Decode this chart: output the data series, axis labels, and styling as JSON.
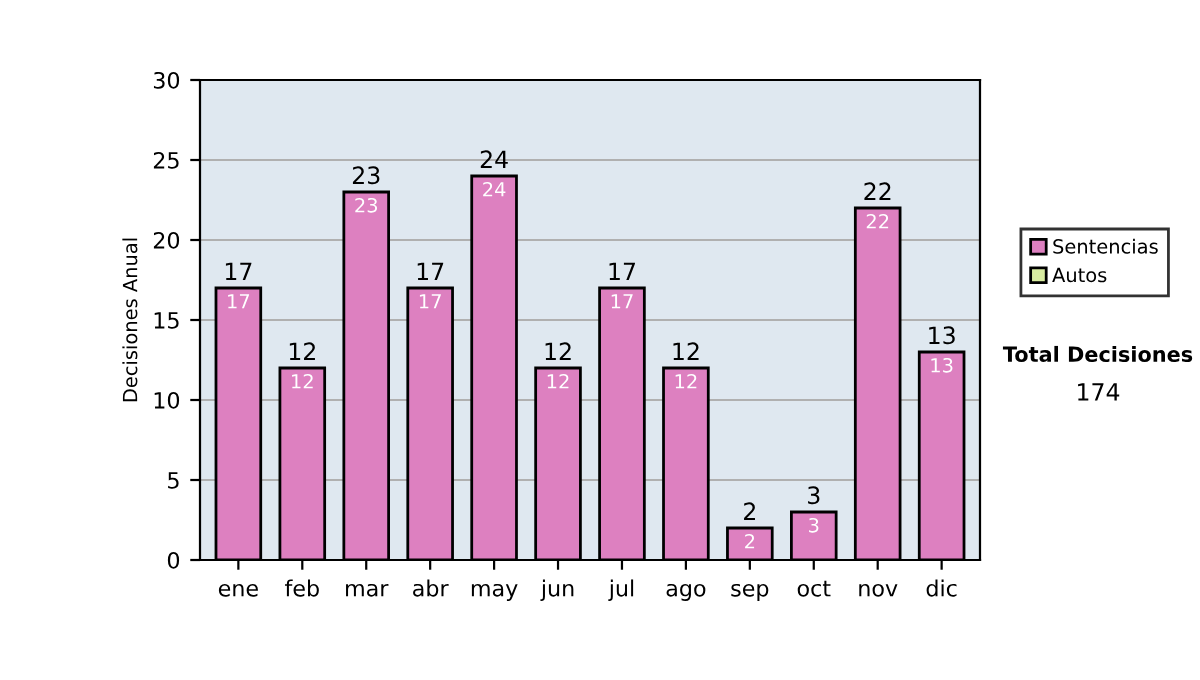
{
  "chart_data": {
    "type": "bar",
    "ylabel": "Decisiones Anual",
    "stacked": true,
    "categories": [
      "ene",
      "feb",
      "mar",
      "abr",
      "may",
      "jun",
      "jul",
      "ago",
      "sep",
      "oct",
      "nov",
      "dic"
    ],
    "series": [
      {
        "name": "Sentencias",
        "color": "#dd80c0",
        "values": [
          17,
          12,
          23,
          17,
          24,
          12,
          17,
          12,
          2,
          3,
          22,
          13
        ]
      },
      {
        "name": "Autos",
        "color": "#d8eca0",
        "values": [
          null,
          null,
          null,
          null,
          null,
          null,
          null,
          null,
          null,
          null,
          null,
          null
        ]
      }
    ],
    "totals": [
      "17",
      "12",
      "23",
      "17",
      "24",
      "12",
      "17",
      "12",
      "2",
      "3",
      "22",
      "13"
    ],
    "data_labels": true,
    "ylim": [
      0,
      30
    ],
    "yticks": [
      0,
      5,
      10,
      15,
      20,
      25,
      30
    ],
    "grid": "y",
    "legend": "right",
    "annotations": [
      "Total Decisiones",
      "174"
    ]
  }
}
